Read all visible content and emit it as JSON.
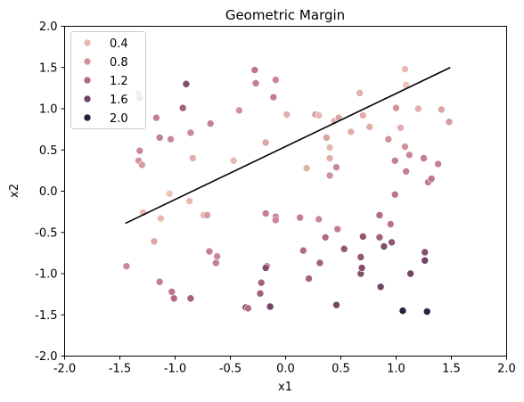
{
  "chart_data": {
    "type": "scatter",
    "title": "Geometric Margin",
    "xlabel": "x1",
    "ylabel": "x2",
    "xlim": [
      -2.0,
      2.0
    ],
    "ylim": [
      -2.0,
      2.0
    ],
    "xticks": [
      "-2.0",
      "-1.5",
      "-1.0",
      "-0.5",
      "0.0",
      "0.5",
      "1.0",
      "1.5",
      "2.0"
    ],
    "yticks": [
      "-2.0",
      "-1.5",
      "-1.0",
      "-0.5",
      "0.0",
      "0.5",
      "1.0",
      "1.5",
      "2.0"
    ],
    "grid": false,
    "legend_position": "top-left",
    "hue_legend": [
      {
        "label": "0.4",
        "value": 0.4
      },
      {
        "label": "0.8",
        "value": 0.8
      },
      {
        "label": "1.2",
        "value": 1.2
      },
      {
        "label": "1.6",
        "value": 1.6
      },
      {
        "label": "2.0",
        "value": 2.0
      }
    ],
    "colors": {
      "hue_low": "#edc3b4",
      "hue_mid": "#bb6f8a",
      "hue_high": "#2d1e3e",
      "line": "#000000"
    },
    "line": {
      "x": [
        -1.45,
        1.49
      ],
      "y": [
        -0.39,
        1.5
      ]
    },
    "points": [
      {
        "x": -1.44,
        "y": -0.91,
        "hue": 0.9
      },
      {
        "x": -1.33,
        "y": 1.18,
        "hue": 1.1
      },
      {
        "x": -1.32,
        "y": 1.13,
        "hue": 1.2
      },
      {
        "x": -1.32,
        "y": 0.49,
        "hue": 0.9
      },
      {
        "x": -1.33,
        "y": 0.37,
        "hue": 0.8
      },
      {
        "x": -1.3,
        "y": 0.32,
        "hue": 0.7
      },
      {
        "x": -1.29,
        "y": -0.26,
        "hue": 0.4
      },
      {
        "x": -1.19,
        "y": -0.61,
        "hue": 0.6
      },
      {
        "x": -1.17,
        "y": 0.89,
        "hue": 1.0
      },
      {
        "x": -1.14,
        "y": -1.1,
        "hue": 1.0
      },
      {
        "x": -1.14,
        "y": 0.65,
        "hue": 1.0
      },
      {
        "x": -1.13,
        "y": -0.33,
        "hue": 0.4
      },
      {
        "x": -1.05,
        "y": -0.03,
        "hue": 0.3
      },
      {
        "x": -1.04,
        "y": 0.63,
        "hue": 0.9
      },
      {
        "x": -1.03,
        "y": -1.22,
        "hue": 1.1
      },
      {
        "x": -1.01,
        "y": -1.3,
        "hue": 1.2
      },
      {
        "x": -0.93,
        "y": 1.01,
        "hue": 1.3
      },
      {
        "x": -0.9,
        "y": 1.3,
        "hue": 1.5
      },
      {
        "x": -0.87,
        "y": -0.12,
        "hue": 0.4
      },
      {
        "x": -0.86,
        "y": 0.71,
        "hue": 0.9
      },
      {
        "x": -0.84,
        "y": 0.4,
        "hue": 0.5
      },
      {
        "x": -0.86,
        "y": -1.3,
        "hue": 1.3
      },
      {
        "x": -0.74,
        "y": -0.29,
        "hue": 0.5
      },
      {
        "x": -0.71,
        "y": -0.29,
        "hue": 0.7
      },
      {
        "x": -0.69,
        "y": -0.73,
        "hue": 1.0
      },
      {
        "x": -0.68,
        "y": 0.82,
        "hue": 1.0
      },
      {
        "x": -0.63,
        "y": -0.87,
        "hue": 1.0
      },
      {
        "x": -0.62,
        "y": -0.79,
        "hue": 0.9
      },
      {
        "x": -0.47,
        "y": 0.37,
        "hue": 0.4
      },
      {
        "x": -0.42,
        "y": 0.98,
        "hue": 0.8
      },
      {
        "x": -0.36,
        "y": -1.41,
        "hue": 1.6
      },
      {
        "x": -0.34,
        "y": -1.42,
        "hue": 1.2
      },
      {
        "x": -0.28,
        "y": 1.47,
        "hue": 1.1
      },
      {
        "x": -0.27,
        "y": 1.31,
        "hue": 1.0
      },
      {
        "x": -0.23,
        "y": -1.24,
        "hue": 1.3
      },
      {
        "x": -0.22,
        "y": -1.11,
        "hue": 1.3
      },
      {
        "x": -0.18,
        "y": 0.59,
        "hue": 0.6
      },
      {
        "x": -0.18,
        "y": -0.27,
        "hue": 1.0
      },
      {
        "x": -0.17,
        "y": -0.91,
        "hue": 1.1
      },
      {
        "x": -0.18,
        "y": -0.93,
        "hue": 1.5
      },
      {
        "x": -0.14,
        "y": -1.4,
        "hue": 1.6
      },
      {
        "x": -0.11,
        "y": 1.14,
        "hue": 1.0
      },
      {
        "x": -0.09,
        "y": 1.35,
        "hue": 0.9
      },
      {
        "x": -0.09,
        "y": -0.31,
        "hue": 0.9
      },
      {
        "x": -0.09,
        "y": -0.35,
        "hue": 0.9
      },
      {
        "x": 0.01,
        "y": 0.93,
        "hue": 0.5
      },
      {
        "x": 0.13,
        "y": -0.32,
        "hue": 1.0
      },
      {
        "x": 0.16,
        "y": -0.72,
        "hue": 1.2
      },
      {
        "x": 0.19,
        "y": 0.28,
        "hue": 0.5
      },
      {
        "x": 0.21,
        "y": -1.06,
        "hue": 1.3
      },
      {
        "x": 0.27,
        "y": 0.93,
        "hue": 0.7
      },
      {
        "x": 0.3,
        "y": 0.92,
        "hue": 0.4
      },
      {
        "x": 0.3,
        "y": -0.34,
        "hue": 0.9
      },
      {
        "x": 0.31,
        "y": -0.87,
        "hue": 1.3
      },
      {
        "x": 0.36,
        "y": -0.56,
        "hue": 1.2
      },
      {
        "x": 0.37,
        "y": 0.65,
        "hue": 0.6
      },
      {
        "x": 0.4,
        "y": 0.4,
        "hue": 0.5
      },
      {
        "x": 0.4,
        "y": 0.53,
        "hue": 0.4
      },
      {
        "x": 0.4,
        "y": 0.19,
        "hue": 0.8
      },
      {
        "x": 0.44,
        "y": 0.85,
        "hue": 0.5
      },
      {
        "x": 0.46,
        "y": 0.29,
        "hue": 0.9
      },
      {
        "x": 0.46,
        "y": -1.38,
        "hue": 1.6
      },
      {
        "x": 0.47,
        "y": -0.46,
        "hue": 1.0
      },
      {
        "x": 0.48,
        "y": 0.89,
        "hue": 0.6
      },
      {
        "x": 0.53,
        "y": -0.7,
        "hue": 1.4
      },
      {
        "x": 0.59,
        "y": 0.72,
        "hue": 0.5
      },
      {
        "x": 0.67,
        "y": 1.19,
        "hue": 0.5
      },
      {
        "x": 0.68,
        "y": -0.8,
        "hue": 1.4
      },
      {
        "x": 0.68,
        "y": -1.0,
        "hue": 1.5
      },
      {
        "x": 0.69,
        "y": -0.93,
        "hue": 1.5
      },
      {
        "x": 0.7,
        "y": -0.55,
        "hue": 1.4
      },
      {
        "x": 0.7,
        "y": 0.92,
        "hue": 0.5
      },
      {
        "x": 0.76,
        "y": 0.78,
        "hue": 0.5
      },
      {
        "x": 0.85,
        "y": -0.29,
        "hue": 1.2
      },
      {
        "x": 0.85,
        "y": -0.56,
        "hue": 1.3
      },
      {
        "x": 0.86,
        "y": -1.16,
        "hue": 1.6
      },
      {
        "x": 0.89,
        "y": -0.67,
        "hue": 1.5
      },
      {
        "x": 0.93,
        "y": 0.63,
        "hue": 0.8
      },
      {
        "x": 0.95,
        "y": -0.4,
        "hue": 1.1
      },
      {
        "x": 0.96,
        "y": -0.62,
        "hue": 1.4
      },
      {
        "x": 1.0,
        "y": 1.01,
        "hue": 0.8
      },
      {
        "x": 0.99,
        "y": 0.37,
        "hue": 1.0
      },
      {
        "x": 0.99,
        "y": -0.04,
        "hue": 1.1
      },
      {
        "x": 1.04,
        "y": 0.77,
        "hue": 0.5
      },
      {
        "x": 1.06,
        "y": -1.45,
        "hue": 2.0
      },
      {
        "x": 1.08,
        "y": 1.48,
        "hue": 0.4
      },
      {
        "x": 1.09,
        "y": 1.29,
        "hue": 0.3
      },
      {
        "x": 1.08,
        "y": 0.54,
        "hue": 0.8
      },
      {
        "x": 1.09,
        "y": 0.24,
        "hue": 1.0
      },
      {
        "x": 1.12,
        "y": 0.44,
        "hue": 0.9
      },
      {
        "x": 1.13,
        "y": -1.0,
        "hue": 1.6
      },
      {
        "x": 1.2,
        "y": 1.0,
        "hue": 0.5
      },
      {
        "x": 1.25,
        "y": 0.4,
        "hue": 1.0
      },
      {
        "x": 1.26,
        "y": -0.74,
        "hue": 1.5
      },
      {
        "x": 1.26,
        "y": -0.84,
        "hue": 1.6
      },
      {
        "x": 1.28,
        "y": -1.46,
        "hue": 2.0
      },
      {
        "x": 1.29,
        "y": 0.11,
        "hue": 1.0
      },
      {
        "x": 1.32,
        "y": 0.15,
        "hue": 1.1
      },
      {
        "x": 1.38,
        "y": 0.33,
        "hue": 1.0
      },
      {
        "x": 1.41,
        "y": 0.99,
        "hue": 0.6
      },
      {
        "x": 1.48,
        "y": 0.84,
        "hue": 0.7
      }
    ]
  }
}
